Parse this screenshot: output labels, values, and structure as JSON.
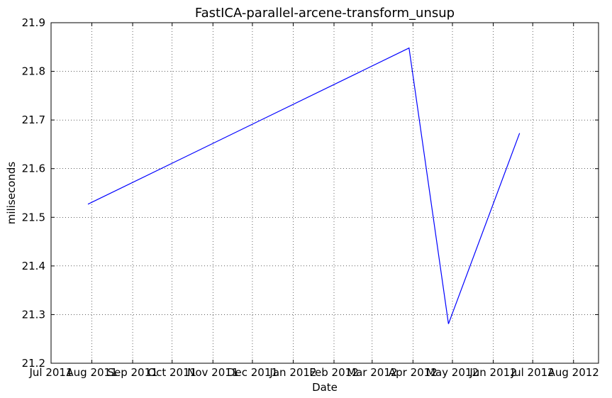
{
  "chart_data": {
    "type": "line",
    "title": "FastICA-parallel-arcene-transform_unsup",
    "xlabel": "Date",
    "ylabel": "miliseconds",
    "x_type": "date",
    "xlim": [
      "2011-07-01",
      "2012-08-20"
    ],
    "ylim": [
      21.2,
      21.9
    ],
    "grid": true,
    "legend": "none",
    "x_ticks": [
      {
        "date": "2011-07-01",
        "label": "Jul 2011"
      },
      {
        "date": "2011-08-01",
        "label": "Aug 2011"
      },
      {
        "date": "2011-09-01",
        "label": "Sep 2011"
      },
      {
        "date": "2011-10-01",
        "label": "Oct 2011"
      },
      {
        "date": "2011-11-01",
        "label": "Nov 2011"
      },
      {
        "date": "2011-12-01",
        "label": "Dec 2011"
      },
      {
        "date": "2012-01-01",
        "label": "Jan 2012"
      },
      {
        "date": "2012-02-01",
        "label": "Feb 2012"
      },
      {
        "date": "2012-03-01",
        "label": "Mar 2012"
      },
      {
        "date": "2012-04-01",
        "label": "Apr 2012"
      },
      {
        "date": "2012-05-01",
        "label": "May 2012"
      },
      {
        "date": "2012-06-01",
        "label": "Jun 2012"
      },
      {
        "date": "2012-07-01",
        "label": "Jul 2012"
      },
      {
        "date": "2012-08-01",
        "label": "Aug 2012"
      }
    ],
    "y_ticks": [
      "21.2",
      "21.3",
      "21.4",
      "21.5",
      "21.6",
      "21.7",
      "21.8",
      "21.9"
    ],
    "series": [
      {
        "color": "#0000ff",
        "points": [
          {
            "x": "2011-07-29",
            "y": 21.527
          },
          {
            "x": "2012-03-29",
            "y": 21.848
          },
          {
            "x": "2012-04-28",
            "y": 21.281
          },
          {
            "x": "2012-06-21",
            "y": 21.673
          }
        ]
      }
    ]
  }
}
